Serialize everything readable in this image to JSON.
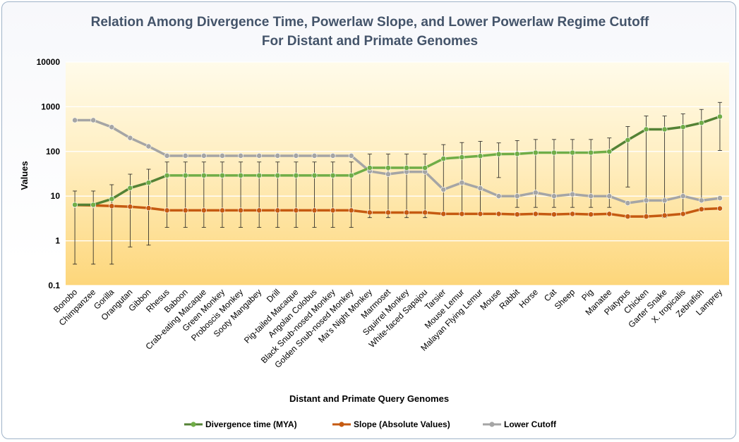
{
  "chart_data": {
    "type": "line",
    "title": [
      "Relation Among Divergence Time, Powerlaw Slope, and Lower Powerlaw Regime Cutoff",
      "For Distant and Primate Genomes"
    ],
    "xlabel": "Distant and Primate Query Genomes",
    "ylabel": "Values",
    "yscale": "log",
    "ylim": [
      0.1,
      10000
    ],
    "yticks": [
      "0.1",
      "1",
      "10",
      "100",
      "1000",
      "10000"
    ],
    "grid": "horizontal",
    "legend_position": "bottom",
    "categories": [
      "Bonobo",
      "Chimpanzee",
      "Gorilla",
      "Orangutan",
      "Gibbon",
      "Rhesus",
      "Baboon",
      "Crab-eating Macaque",
      "Green Monkey",
      "Proboscis Monkey",
      "Sooty Mangabey",
      "Drill",
      "Pig-tailed Macaque",
      "Angolan Colobus",
      "Black Snub-nosed Monkey",
      "Golden Snub-nosed Monkey",
      "Ma's Night Monkey",
      "Marmoset",
      "Squirrel Monkey",
      "White-faced Sapajou",
      "Tarsier",
      "Mouse Lemur",
      "Malayan Flying Lemur",
      "Mouse",
      "Rabbit",
      "Horse",
      "Cat",
      "Sheep",
      "Pig",
      "Manatee",
      "Platypus",
      "Chicken",
      "Garter Snake",
      "X. tropicalis",
      "Zebrafish",
      "Lamprey"
    ],
    "series": [
      {
        "name": "Divergence time (MYA)",
        "color": "#70ad47",
        "dark_color": "#548235",
        "values": [
          6.4,
          6.4,
          8.6,
          15.2,
          20,
          29,
          29,
          29,
          29,
          29,
          29,
          29,
          29,
          29,
          29,
          29,
          43,
          43,
          43,
          43,
          69,
          74,
          79,
          87,
          88,
          94,
          94,
          94,
          94,
          99,
          180,
          312,
          312,
          352,
          435,
          600
        ]
      },
      {
        "name": "Slope (Absolute Values)",
        "color": "#c55a11",
        "values": [
          6.3,
          6.2,
          6.0,
          5.8,
          5.4,
          4.8,
          4.8,
          4.8,
          4.8,
          4.8,
          4.8,
          4.8,
          4.8,
          4.8,
          4.8,
          4.8,
          4.3,
          4.3,
          4.3,
          4.3,
          4.0,
          4.0,
          4.0,
          4.0,
          3.9,
          4.0,
          3.9,
          4.0,
          3.9,
          4.0,
          3.5,
          3.5,
          3.7,
          4.0,
          5.1,
          5.3
        ]
      },
      {
        "name": "Lower Cutoff",
        "color": "#a5a5a5",
        "values": [
          500,
          500,
          350,
          200,
          130,
          80,
          80,
          80,
          80,
          80,
          80,
          80,
          80,
          80,
          80,
          80,
          36,
          31,
          35,
          35,
          14,
          20,
          15,
          10,
          10,
          12,
          10,
          11,
          10,
          10,
          7,
          8,
          8,
          10,
          8,
          9
        ]
      }
    ],
    "error_bars": {
      "series": "Divergence time (MYA)",
      "low": [
        0.3,
        0.3,
        0.3,
        0.73,
        0.8,
        2,
        2,
        2,
        2,
        2,
        2,
        2,
        2,
        2,
        2,
        2,
        3.3,
        3.3,
        3.3,
        3.3,
        3.7,
        3.7,
        3.7,
        26,
        5.6,
        5.6,
        5.6,
        5.6,
        5.6,
        5.6,
        16,
        3.3,
        3.3,
        3.7,
        7.5,
        105
      ],
      "high": [
        13,
        13,
        18,
        31,
        40,
        58,
        58,
        58,
        58,
        58,
        58,
        58,
        58,
        58,
        58,
        58,
        87,
        87,
        87,
        87,
        142,
        158,
        168,
        155,
        175,
        185,
        185,
        185,
        185,
        200,
        360,
        620,
        620,
        690,
        870,
        1250
      ]
    }
  }
}
